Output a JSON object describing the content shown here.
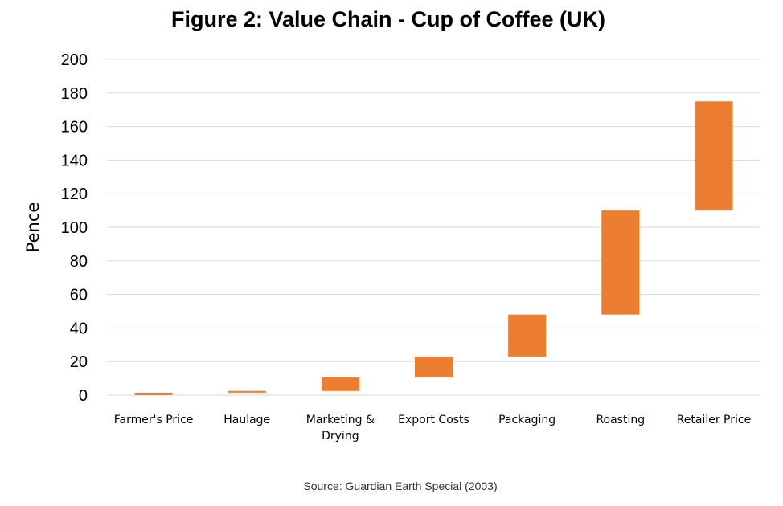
{
  "chart_data": {
    "type": "bar",
    "subtype": "waterfall",
    "title": "Figure 2: Value Chain - Cup of Coffee (UK)",
    "ylabel": "Pence",
    "xlabel": "",
    "ylim": [
      0,
      200
    ],
    "yticks": [
      0,
      20,
      40,
      60,
      80,
      100,
      120,
      140,
      160,
      180,
      200
    ],
    "grid": true,
    "legend": "none",
    "bar_color": "#ED7D31",
    "categories": [
      [
        "Farmer's Price"
      ],
      [
        "Haulage"
      ],
      [
        "Marketing &",
        "Drying"
      ],
      [
        "Export Costs"
      ],
      [
        "Packaging"
      ],
      [
        "Roasting"
      ],
      [
        "Retailer Price"
      ]
    ],
    "bars": [
      {
        "start": 0,
        "end": 1.5
      },
      {
        "start": 1.5,
        "end": 2.5
      },
      {
        "start": 2.5,
        "end": 10.5
      },
      {
        "start": 10.5,
        "end": 23
      },
      {
        "start": 23,
        "end": 48
      },
      {
        "start": 48,
        "end": 110
      },
      {
        "start": 110,
        "end": 175
      }
    ],
    "source": "Source: Guardian Earth Special (2003)"
  }
}
